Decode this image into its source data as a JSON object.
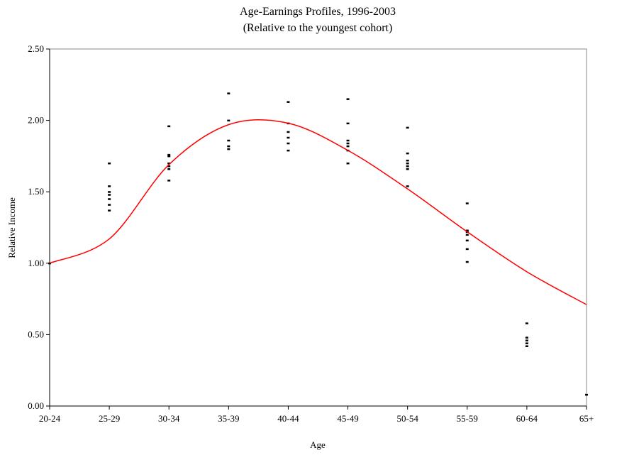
{
  "chart_data": {
    "type": "line-scatter",
    "title": "Age-Earnings Profiles, 1996-2003",
    "subtitle": "(Relative to the youngest cohort)",
    "x_label": "Age",
    "y_label": "Relative Income",
    "categories": [
      "20-24",
      "25-29",
      "30-34",
      "35-39",
      "40-44",
      "45-49",
      "50-54",
      "55-59",
      "60-64",
      "65+"
    ],
    "ylim": [
      0,
      2.5
    ],
    "yticks": [
      {
        "value": 0,
        "label": "0.00"
      },
      {
        "value": 0.5,
        "label": "0.50"
      },
      {
        "value": 1,
        "label": "1.00"
      },
      {
        "value": 1.5,
        "label": "1.50"
      },
      {
        "value": 2,
        "label": "2.00"
      },
      {
        "value": 2.5,
        "label": "2.50"
      }
    ],
    "series": [
      {
        "type": "scatter",
        "color": "#000000",
        "values": [
          [
            1.0
          ],
          [
            1.7,
            1.54,
            1.5,
            1.48,
            1.45,
            1.41,
            1.37
          ],
          [
            1.96,
            1.76,
            1.75,
            1.7,
            1.68,
            1.66,
            1.58
          ],
          [
            2.19,
            2.0,
            1.86,
            1.82,
            1.8
          ],
          [
            2.13,
            1.98,
            1.92,
            1.88,
            1.84,
            1.79
          ],
          [
            2.15,
            1.98,
            1.86,
            1.84,
            1.82,
            1.79,
            1.7
          ],
          [
            1.95,
            1.77,
            1.72,
            1.7,
            1.68,
            1.66,
            1.54
          ],
          [
            1.42,
            1.23,
            1.22,
            1.2,
            1.16,
            1.1,
            1.01
          ],
          [
            0.58,
            0.48,
            0.46,
            0.44,
            0.42
          ],
          [
            0.08
          ]
        ]
      },
      {
        "type": "line",
        "color": "#ff0000",
        "values": [
          1.0,
          1.17,
          1.69,
          1.97,
          1.98,
          1.79,
          1.52,
          1.22,
          0.94,
          0.71
        ]
      }
    ]
  }
}
